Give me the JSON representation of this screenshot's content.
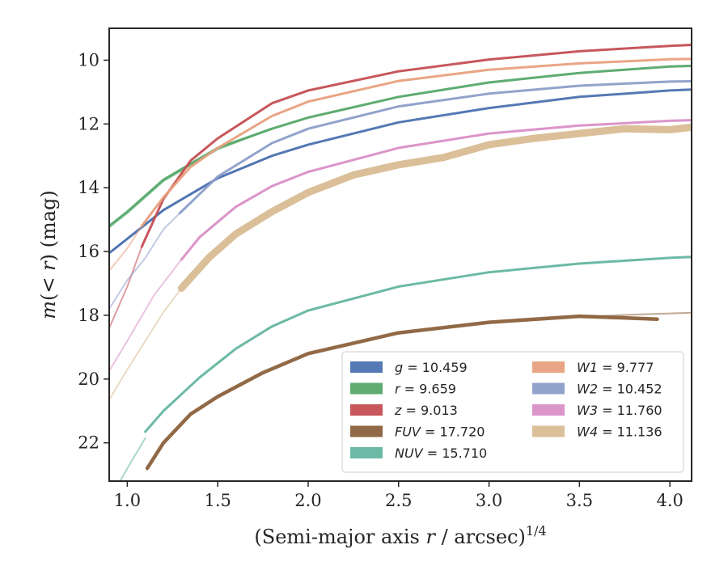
{
  "chart_data": {
    "type": "line",
    "xlabel": "(Semi-major axis r / arcsec)^{1/4}",
    "ylabel": "m(< r) (mag)",
    "xlim": [
      0.9,
      4.12
    ],
    "ylim": [
      23.2,
      9.0
    ],
    "y_inverted": true,
    "grid": false,
    "legend_position": "lower-right",
    "legend_columns": 2,
    "x_ticks": [
      "1.0",
      "1.5",
      "2.0",
      "2.5",
      "3.0",
      "3.5",
      "4.0"
    ],
    "y_ticks": [
      "10",
      "12",
      "14",
      "16",
      "18",
      "20",
      "22"
    ],
    "series": [
      {
        "name": "g",
        "value": "10.459",
        "color": "#4c72b0",
        "points": [
          [
            0.9,
            16.05
          ],
          [
            1.0,
            15.6
          ],
          [
            1.2,
            14.7
          ],
          [
            1.5,
            13.7
          ],
          [
            1.8,
            13.0
          ],
          [
            2.0,
            12.65
          ],
          [
            2.5,
            11.95
          ],
          [
            3.0,
            11.5
          ],
          [
            3.5,
            11.15
          ],
          [
            4.0,
            10.95
          ],
          [
            4.12,
            10.92
          ]
        ],
        "faint_points": [
          [
            0.9,
            16.05
          ],
          [
            1.0,
            15.6
          ],
          [
            1.2,
            14.7
          ],
          [
            1.5,
            13.7
          ],
          [
            1.8,
            13.0
          ]
        ]
      },
      {
        "name": "r",
        "value": "9.659",
        "color": "#55a868",
        "points": [
          [
            0.9,
            15.2
          ],
          [
            1.0,
            14.75
          ],
          [
            1.2,
            13.75
          ],
          [
            1.5,
            12.75
          ],
          [
            1.8,
            12.15
          ],
          [
            2.0,
            11.8
          ],
          [
            2.5,
            11.15
          ],
          [
            3.0,
            10.7
          ],
          [
            3.5,
            10.4
          ],
          [
            4.0,
            10.2
          ],
          [
            4.12,
            10.18
          ]
        ],
        "faint_points": [
          [
            0.9,
            15.25
          ],
          [
            1.0,
            14.8
          ],
          [
            1.2,
            13.8
          ],
          [
            1.5,
            12.8
          ],
          [
            1.8,
            12.15
          ]
        ]
      },
      {
        "name": "z",
        "value": "9.013",
        "color": "#c44e52",
        "points": [
          [
            1.08,
            15.85
          ],
          [
            1.2,
            14.35
          ],
          [
            1.35,
            13.15
          ],
          [
            1.5,
            12.45
          ],
          [
            1.8,
            11.35
          ],
          [
            2.0,
            10.95
          ],
          [
            2.5,
            10.35
          ],
          [
            3.0,
            9.98
          ],
          [
            3.5,
            9.72
          ],
          [
            4.0,
            9.55
          ],
          [
            4.12,
            9.52
          ]
        ],
        "faint_points": [
          [
            0.9,
            18.4
          ],
          [
            1.0,
            17.1
          ],
          [
            1.08,
            15.85
          ]
        ]
      },
      {
        "name": "FUV",
        "value": "17.720",
        "color": "#8c613c",
        "points": [
          [
            1.11,
            22.8
          ],
          [
            1.2,
            22.0
          ],
          [
            1.35,
            21.1
          ],
          [
            1.5,
            20.55
          ],
          [
            1.75,
            19.8
          ],
          [
            2.0,
            19.2
          ],
          [
            2.5,
            18.55
          ],
          [
            3.0,
            18.22
          ],
          [
            3.5,
            18.03
          ],
          [
            3.93,
            18.12
          ]
        ],
        "faint_points": [
          [
            3.5,
            18.05
          ],
          [
            3.8,
            17.98
          ],
          [
            4.12,
            17.92
          ]
        ]
      },
      {
        "name": "NUV",
        "value": "15.710",
        "color": "#64b5a0",
        "points": [
          [
            1.1,
            21.65
          ],
          [
            1.2,
            21.0
          ],
          [
            1.4,
            19.95
          ],
          [
            1.6,
            19.05
          ],
          [
            1.8,
            18.35
          ],
          [
            2.0,
            17.85
          ],
          [
            2.5,
            17.1
          ],
          [
            3.0,
            16.65
          ],
          [
            3.5,
            16.38
          ],
          [
            4.0,
            16.2
          ],
          [
            4.12,
            16.17
          ]
        ],
        "faint_points": [
          [
            0.95,
            23.3
          ],
          [
            1.0,
            22.8
          ],
          [
            1.1,
            21.85
          ]
        ]
      },
      {
        "name": "W1",
        "value": "9.777",
        "color": "#e8a07e",
        "points": [
          [
            1.08,
            15.2
          ],
          [
            1.2,
            14.3
          ],
          [
            1.35,
            13.35
          ],
          [
            1.5,
            12.75
          ],
          [
            1.8,
            11.75
          ],
          [
            2.0,
            11.3
          ],
          [
            2.5,
            10.65
          ],
          [
            3.0,
            10.3
          ],
          [
            3.5,
            10.1
          ],
          [
            4.0,
            9.97
          ],
          [
            4.12,
            9.96
          ]
        ],
        "faint_points": [
          [
            0.9,
            16.6
          ],
          [
            1.0,
            15.9
          ],
          [
            1.08,
            15.2
          ]
        ]
      },
      {
        "name": "W2",
        "value": "10.452",
        "color": "#8c9ec8",
        "points": [
          [
            1.29,
            14.8
          ],
          [
            1.5,
            13.65
          ],
          [
            1.8,
            12.6
          ],
          [
            2.0,
            12.15
          ],
          [
            2.5,
            11.45
          ],
          [
            3.0,
            11.05
          ],
          [
            3.5,
            10.8
          ],
          [
            4.0,
            10.67
          ],
          [
            4.12,
            10.66
          ]
        ],
        "faint_points": [
          [
            0.9,
            17.8
          ],
          [
            1.0,
            16.9
          ],
          [
            1.1,
            16.2
          ],
          [
            1.2,
            15.3
          ],
          [
            1.29,
            14.8
          ]
        ]
      },
      {
        "name": "W3",
        "value": "11.760",
        "color": "#d98fc6",
        "points": [
          [
            1.3,
            16.25
          ],
          [
            1.4,
            15.55
          ],
          [
            1.6,
            14.6
          ],
          [
            1.8,
            13.95
          ],
          [
            2.0,
            13.5
          ],
          [
            2.5,
            12.75
          ],
          [
            3.0,
            12.3
          ],
          [
            3.5,
            12.05
          ],
          [
            4.0,
            11.9
          ],
          [
            4.12,
            11.88
          ]
        ],
        "faint_points": [
          [
            0.9,
            19.75
          ],
          [
            1.0,
            18.8
          ],
          [
            1.15,
            17.35
          ],
          [
            1.3,
            16.25
          ]
        ]
      },
      {
        "name": "W4",
        "value": "11.136",
        "color": "#d8bc93",
        "points": [
          [
            1.3,
            17.15
          ],
          [
            1.45,
            16.2
          ],
          [
            1.6,
            15.45
          ],
          [
            1.8,
            14.75
          ],
          [
            2.0,
            14.15
          ],
          [
            2.25,
            13.6
          ],
          [
            2.5,
            13.28
          ],
          [
            2.75,
            13.05
          ],
          [
            3.0,
            12.65
          ],
          [
            3.25,
            12.45
          ],
          [
            3.5,
            12.3
          ],
          [
            3.75,
            12.15
          ],
          [
            4.0,
            12.18
          ],
          [
            4.12,
            12.1
          ]
        ],
        "faint_points": [
          [
            0.9,
            20.65
          ],
          [
            1.0,
            19.7
          ],
          [
            1.2,
            17.9
          ],
          [
            1.3,
            17.15
          ]
        ]
      }
    ]
  }
}
